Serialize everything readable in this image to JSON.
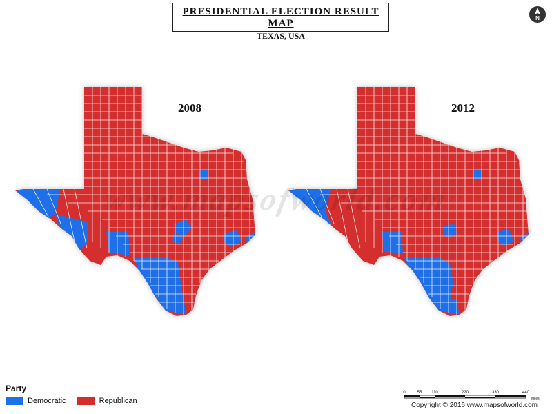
{
  "header": {
    "title": "PRESIDENTIAL ELECTION RESULT MAP",
    "subtitle": "TEXAS, USA"
  },
  "north_arrow": {
    "label": "N",
    "icon": "north-arrow-icon"
  },
  "maps": [
    {
      "year": "2008"
    },
    {
      "year": "2012"
    }
  ],
  "colors": {
    "democratic": "#1f6fe8",
    "republican": "#d42d2d",
    "border": "#ffffff"
  },
  "watermark": "www.mapsofworld.com",
  "legend": {
    "title": "Party",
    "items": [
      {
        "label": "Democratic",
        "color": "#1f6fe8"
      },
      {
        "label": "Republican",
        "color": "#d42d2d"
      }
    ]
  },
  "scale": {
    "ticks": [
      "0",
      "55",
      "110",
      "220",
      "330",
      "440"
    ],
    "unit": "Miles"
  },
  "copyright": "Copyright © 2016 www.mapsofworld.com"
}
